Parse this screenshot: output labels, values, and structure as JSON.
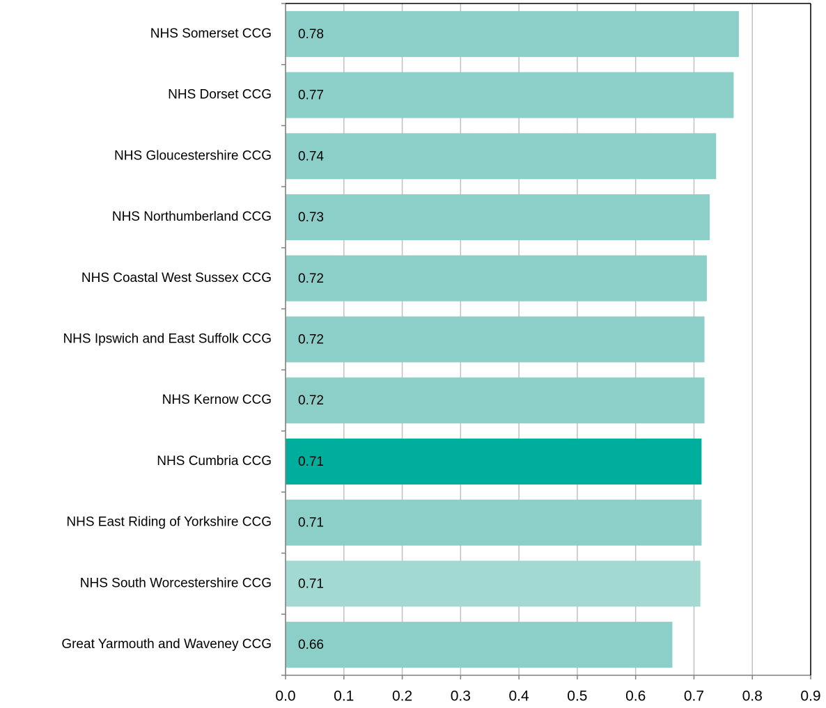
{
  "chart_data": {
    "type": "hbar",
    "categories": [
      "NHS Somerset CCG",
      "NHS Dorset CCG",
      "NHS Gloucestershire CCG",
      "NHS Northumberland CCG",
      "NHS Coastal West Sussex CCG",
      "NHS Ipswich and East Suffolk CCG",
      "NHS Kernow CCG",
      "NHS Cumbria CCG",
      "NHS East Riding of Yorkshire CCG",
      "NHS South Worcestershire CCG",
      "Great Yarmouth and Waveney CCG"
    ],
    "values": [
      0.777,
      0.768,
      0.738,
      0.727,
      0.722,
      0.718,
      0.718,
      0.713,
      0.713,
      0.711,
      0.663
    ],
    "value_labels": [
      "0.78",
      "0.77",
      "0.74",
      "0.73",
      "0.72",
      "0.72",
      "0.72",
      "0.71",
      "0.71",
      "0.71",
      "0.66"
    ],
    "colors": [
      "#8ccfc8",
      "#8ccfc8",
      "#8ccfc8",
      "#8ccfc8",
      "#8ccfc8",
      "#8ccfc8",
      "#8ccfc8",
      "#00ae9e",
      "#8ccfc8",
      "#a3d9d3",
      "#8ccfc8"
    ],
    "xlim": [
      0,
      0.9
    ],
    "xticks": [
      {
        "value": 0,
        "label": "0.0"
      },
      0.1,
      0.2,
      0.3,
      0.4,
      0.5,
      0.6,
      0.7,
      0.8,
      0.9
    ],
    "grid": true
  }
}
